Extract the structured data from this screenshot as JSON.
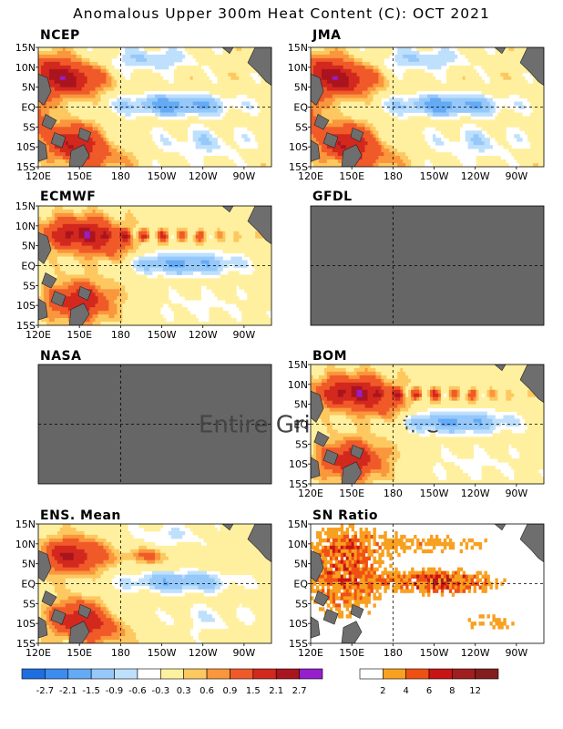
{
  "title": "Anomalous Upper 300m Heat Content (C): OCT 2021",
  "colors": {
    "missing": "#666666",
    "land": "#6e6e6e",
    "anom_palette": [
      "#1e6ee0",
      "#3c8cf0",
      "#64aaf5",
      "#96c8fa",
      "#bee0fc",
      "#ffffff",
      "#fff0a0",
      "#fdc860",
      "#fa963c",
      "#f05a28",
      "#d2281e",
      "#aa141e",
      "#961ecc"
    ],
    "sn_palette": [
      "#ffffff",
      "#f8a020",
      "#f05014",
      "#c81414",
      "#a01e1e",
      "#821e1e",
      "#9628d2"
    ]
  },
  "chart_data": [
    {
      "panel": "NCEP",
      "type": "heatmap",
      "title": "NCEP",
      "x_ticks": [
        "120E",
        "150E",
        "180",
        "150W",
        "120W",
        "90W"
      ],
      "y_ticks": [
        "15N",
        "10N",
        "5N",
        "EQ",
        "5S",
        "10S",
        "15S"
      ],
      "xlim": [
        120,
        290
      ],
      "ylim": [
        -15,
        15
      ],
      "field": "anomaly",
      "pattern": "lanina_strong",
      "status": "data"
    },
    {
      "panel": "JMA",
      "type": "heatmap",
      "title": "JMA",
      "x_ticks": [
        "120E",
        "150E",
        "180",
        "150W",
        "120W",
        "90W"
      ],
      "y_ticks": [
        "15N",
        "10N",
        "5N",
        "EQ",
        "5S",
        "10S",
        "15S"
      ],
      "xlim": [
        120,
        290
      ],
      "ylim": [
        -15,
        15
      ],
      "field": "anomaly",
      "pattern": "lanina_strong",
      "status": "data"
    },
    {
      "panel": "ECMWF",
      "type": "heatmap",
      "title": "ECMWF",
      "x_ticks": [
        "120E",
        "150E",
        "180",
        "150W",
        "120W",
        "90W"
      ],
      "y_ticks": [
        "15N",
        "10N",
        "5N",
        "EQ",
        "5S",
        "10S",
        "15S"
      ],
      "xlim": [
        120,
        290
      ],
      "ylim": [
        -15,
        15
      ],
      "field": "anomaly",
      "pattern": "lanina_tiw",
      "status": "data"
    },
    {
      "panel": "GFDL",
      "type": "heatmap",
      "title": "GFDL",
      "field": "anomaly",
      "status": "missing"
    },
    {
      "panel": "NASA",
      "type": "heatmap",
      "title": "NASA",
      "field": "anomaly",
      "status": "missing",
      "missing_text": "Entire Grid Undefined"
    },
    {
      "panel": "BOM",
      "type": "heatmap",
      "title": "BOM",
      "x_ticks": [
        "120E",
        "150E",
        "180",
        "150W",
        "120W",
        "90W"
      ],
      "y_ticks": [
        "15N",
        "10N",
        "5N",
        "EQ",
        "5S",
        "10S",
        "15S"
      ],
      "xlim": [
        120,
        290
      ],
      "ylim": [
        -15,
        15
      ],
      "field": "anomaly",
      "pattern": "lanina_tiw",
      "status": "data"
    },
    {
      "panel": "ENS. Mean",
      "type": "heatmap",
      "title": "ENS. Mean",
      "x_ticks": [
        "120E",
        "150E",
        "180",
        "150W",
        "120W",
        "90W"
      ],
      "y_ticks": [
        "15N",
        "10N",
        "5N",
        "EQ",
        "5S",
        "10S",
        "15S"
      ],
      "xlim": [
        120,
        290
      ],
      "ylim": [
        -15,
        15
      ],
      "field": "anomaly",
      "pattern": "lanina_mean",
      "status": "data"
    },
    {
      "panel": "SN Ratio",
      "type": "heatmap",
      "title": "SN Ratio",
      "x_ticks": [
        "120E",
        "150E",
        "180",
        "150W",
        "120W",
        "90W"
      ],
      "y_ticks": [
        "15N",
        "10N",
        "5N",
        "EQ",
        "5S",
        "10S",
        "15S"
      ],
      "xlim": [
        120,
        290
      ],
      "ylim": [
        -15,
        15
      ],
      "field": "snr",
      "pattern": "snr",
      "status": "data"
    }
  ],
  "colorbars": {
    "anomaly": {
      "labels": [
        "-2.7",
        "-2.1",
        "-1.5",
        "-0.9",
        "-0.6",
        "-0.3",
        "0.3",
        "0.6",
        "0.9",
        "1.5",
        "2.1",
        "2.7"
      ]
    },
    "snr": {
      "labels": [
        "2",
        "4",
        "6",
        "8",
        "12"
      ]
    }
  }
}
